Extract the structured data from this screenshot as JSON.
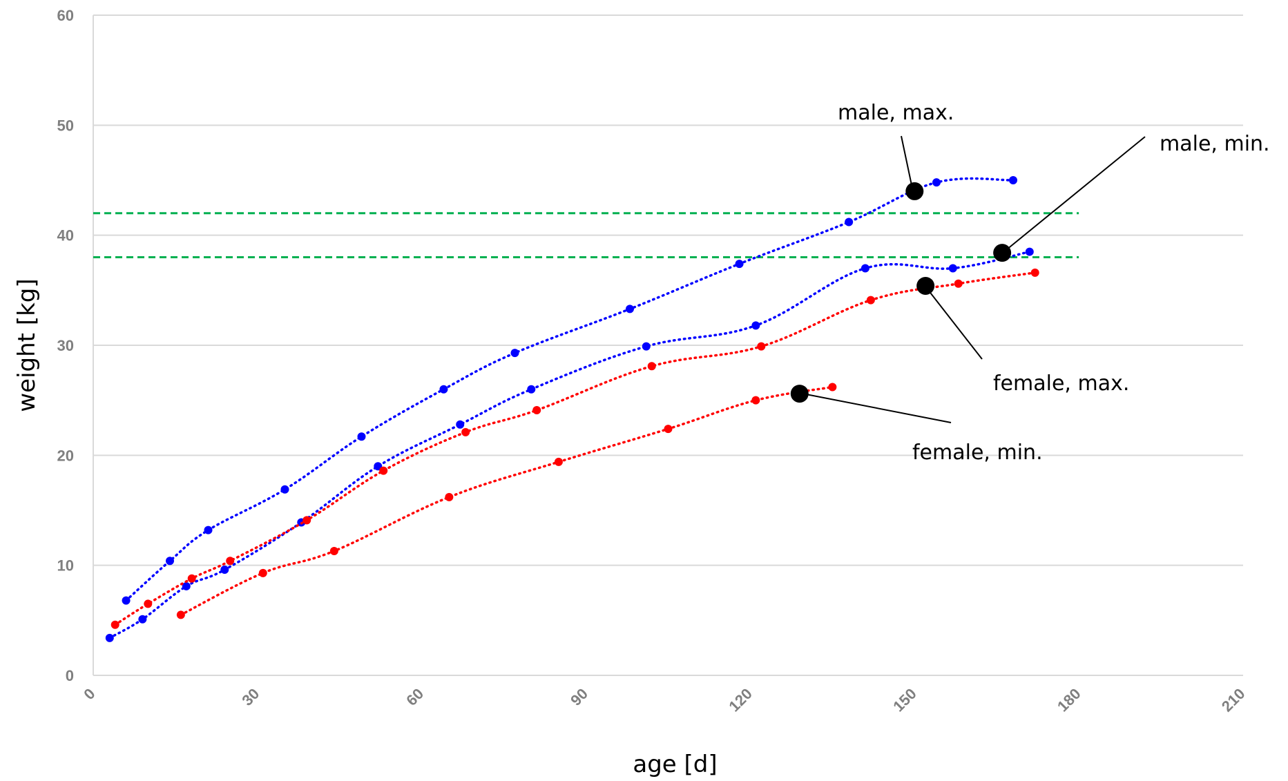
{
  "chart_data": {
    "type": "line",
    "xlabel": "age [d]",
    "ylabel": "weight [kg]",
    "xlim": [
      0,
      210
    ],
    "ylim": [
      0,
      60
    ],
    "xticks": [
      0,
      30,
      60,
      90,
      120,
      150,
      180,
      210
    ],
    "yticks": [
      0,
      10,
      20,
      30,
      40,
      50,
      60
    ],
    "grid": "horizontal",
    "legend": "none",
    "series": [
      {
        "name": "male, max.",
        "color": "#0000ff",
        "x": [
          6,
          14,
          21,
          35,
          49,
          64,
          77,
          98,
          118,
          138,
          154,
          168
        ],
        "y": [
          6.8,
          10.4,
          13.2,
          16.9,
          21.7,
          26.0,
          29.3,
          33.3,
          37.4,
          41.2,
          44.8,
          45.0
        ]
      },
      {
        "name": "male, min.",
        "color": "#0000ff",
        "x": [
          3,
          9,
          17,
          24,
          38,
          52,
          67,
          80,
          101,
          121,
          141,
          157,
          171
        ],
        "y": [
          3.4,
          5.1,
          8.1,
          9.6,
          13.9,
          19.0,
          22.8,
          26.0,
          29.9,
          31.8,
          37.0,
          37.0,
          38.5
        ]
      },
      {
        "name": "female, max.",
        "color": "#ff0000",
        "x": [
          4,
          10,
          18,
          25,
          39,
          53,
          68,
          81,
          102,
          122,
          142,
          158,
          172
        ],
        "y": [
          4.6,
          6.5,
          8.8,
          10.4,
          14.1,
          18.6,
          22.1,
          24.1,
          28.1,
          29.9,
          34.1,
          35.6,
          36.6
        ]
      },
      {
        "name": "female, min.",
        "color": "#ff0000",
        "x": [
          16,
          31,
          44,
          65,
          85,
          105,
          121,
          135
        ],
        "y": [
          5.5,
          9.3,
          11.3,
          16.2,
          19.4,
          22.4,
          25.0,
          26.2
        ]
      }
    ],
    "reference_lines": [
      {
        "y": 42,
        "x_end": 180,
        "color": "#00b050",
        "style": "dashed"
      },
      {
        "y": 38,
        "x_end": 180,
        "color": "#00b050",
        "style": "dashed"
      }
    ],
    "annotations": [
      {
        "text": "male, max.",
        "marker_x": 150,
        "marker_y": 44
      },
      {
        "text": "male, min.",
        "marker_x": 166,
        "marker_y": 38.4
      },
      {
        "text": "female, max.",
        "marker_x": 152,
        "marker_y": 35.4
      },
      {
        "text": "female, min.",
        "marker_x": 129,
        "marker_y": 25.6
      }
    ]
  }
}
